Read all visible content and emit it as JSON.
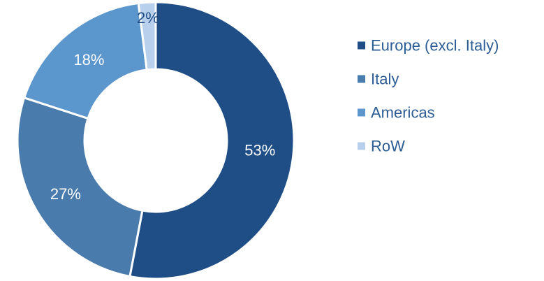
{
  "chart_data": {
    "type": "pie",
    "style": "donut",
    "title": "",
    "legend_position": "right",
    "slices": [
      {
        "name": "Europe (excl. Italy)",
        "value": 53,
        "label": "53%",
        "color": "#1f4e86"
      },
      {
        "name": "Italy",
        "value": 27,
        "label": "27%",
        "color": "#4a7bad"
      },
      {
        "name": "Americas",
        "value": 18,
        "label": "18%",
        "color": "#5b96cd"
      },
      {
        "name": "RoW",
        "value": 2,
        "label": "2%",
        "color": "#b8d0ec"
      }
    ],
    "label_colors": {
      "on_dark": "#ffffff",
      "on_light": "#1f4e86"
    },
    "legend_text_color": "#2c5c94"
  }
}
